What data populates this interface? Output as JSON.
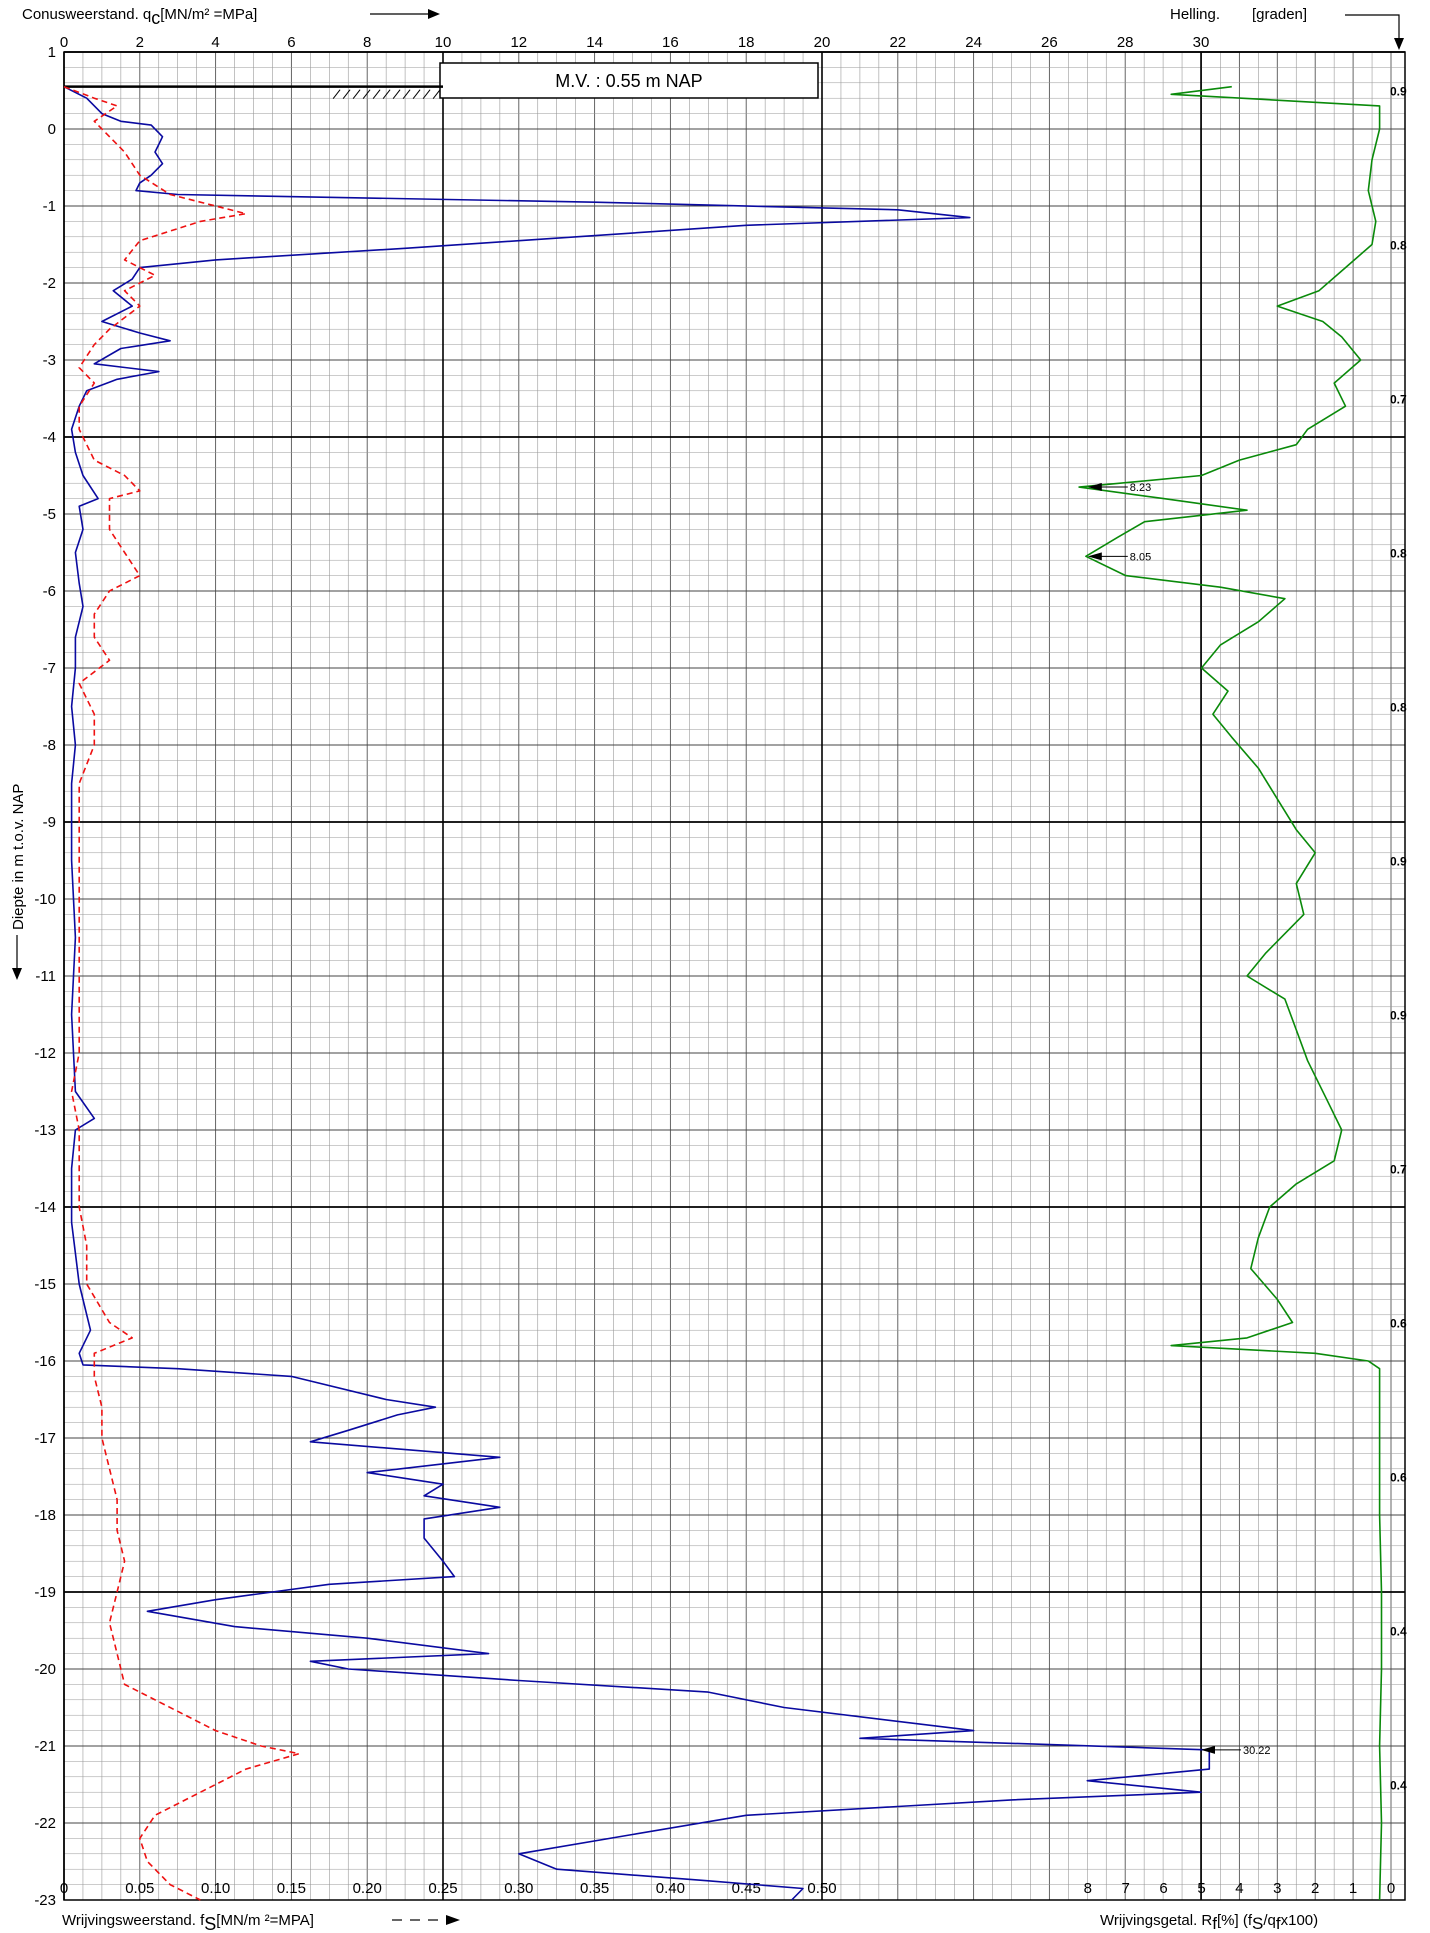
{
  "header": {
    "qc_label": "Conusweerstand. q",
    "qc_sub": "c",
    "qc_unit": "[MN/m² =MPa]",
    "helling_label": "Helling.",
    "helling_unit": "[graden]",
    "mv_label": "M.V. :  0.55      m    NAP"
  },
  "footer": {
    "fs_label": "Wrijvingsweerstand. f",
    "fs_sub": "S",
    "fs_unit": "[MN/m ²=MPA]",
    "rf_label": "Wrijvingsgetal. R",
    "rf_sub": "f",
    "rf_unit": "[%]  (f",
    "rf_unit2": "/q",
    "rf_unit3": "x100)"
  },
  "y_axis_label": "Diepte in m t.o.v. NAP",
  "chart_data": {
    "type": "line",
    "ground_level_nap": 0.55,
    "axes": {
      "depth": {
        "label": "Diepte in m t.o.v. NAP",
        "range": [
          1,
          -23
        ],
        "ticks": [
          1,
          0,
          -1,
          -2,
          -3,
          -4,
          -5,
          -6,
          -7,
          -8,
          -9,
          -10,
          -11,
          -12,
          -13,
          -14,
          -15,
          -16,
          -17,
          -18,
          -19,
          -20,
          -21,
          -22,
          -23
        ]
      },
      "qc": {
        "label": "Conusweerstand. qc [MN/m² =MPa]",
        "range": [
          0,
          30
        ],
        "ticks": [
          0,
          2,
          4,
          6,
          8,
          10,
          12,
          14,
          16,
          18,
          20,
          22,
          24,
          26,
          28,
          30
        ]
      },
      "fs": {
        "label": "Wrijvingsweerstand. fs [MN/m ²=MPA]",
        "range": [
          0,
          0.5
        ],
        "ticks": [
          "0",
          "0.05",
          "0.10",
          "0.15",
          "0.20",
          "0.25",
          "0.30",
          "0.35",
          "0.40",
          "0.45",
          "0.50"
        ]
      },
      "rf": {
        "label": "Wrijvingsgetal. Rf [%] (fs/qc x100)",
        "range": [
          10,
          0
        ],
        "ticks": [
          "8",
          "7",
          "6",
          "5",
          "4",
          "3",
          "2",
          "1",
          "0"
        ]
      },
      "helling": {
        "label": "Helling. [graden]",
        "labels": [
          {
            "depth": 0.5,
            "text": "0.9"
          },
          {
            "depth": -1.5,
            "text": "0.8"
          },
          {
            "depth": -3.5,
            "text": "0.7"
          },
          {
            "depth": -5.5,
            "text": "0.8"
          },
          {
            "depth": -7.5,
            "text": "0.8"
          },
          {
            "depth": -9.5,
            "text": "0.9"
          },
          {
            "depth": -11.5,
            "text": "0.9"
          },
          {
            "depth": -13.5,
            "text": "0.7"
          },
          {
            "depth": -15.5,
            "text": "0.6"
          },
          {
            "depth": -17.5,
            "text": "0.6"
          },
          {
            "depth": -19.5,
            "text": "0.4"
          },
          {
            "depth": -21.5,
            "text": "0.4"
          }
        ]
      }
    },
    "annotations": [
      {
        "depth": -4.65,
        "rf": 8.23,
        "text": "8.23"
      },
      {
        "depth": -5.55,
        "rf": 8.05,
        "text": "8.05"
      },
      {
        "depth": -21.05,
        "qc": 30.22,
        "text": "30.22"
      }
    ],
    "series": [
      {
        "name": "qc",
        "color": "#0a0aa0",
        "style": "solid",
        "points": [
          [
            0.55,
            0
          ],
          [
            0.4,
            0.6
          ],
          [
            0.2,
            1.0
          ],
          [
            0.1,
            1.5
          ],
          [
            0.05,
            2.3
          ],
          [
            -0.1,
            2.6
          ],
          [
            -0.2,
            2.5
          ],
          [
            -0.3,
            2.4
          ],
          [
            -0.45,
            2.6
          ],
          [
            -0.6,
            2.3
          ],
          [
            -0.7,
            2.0
          ],
          [
            -0.8,
            1.9
          ],
          [
            -0.85,
            3.0
          ],
          [
            -0.95,
            14.0
          ],
          [
            -1.05,
            22.0
          ],
          [
            -1.15,
            23.9
          ],
          [
            -1.25,
            18.0
          ],
          [
            -1.45,
            12.0
          ],
          [
            -1.55,
            9.0
          ],
          [
            -1.7,
            4.0
          ],
          [
            -1.8,
            2.0
          ],
          [
            -1.95,
            1.8
          ],
          [
            -2.1,
            1.3
          ],
          [
            -2.3,
            1.8
          ],
          [
            -2.5,
            1.0
          ],
          [
            -2.65,
            2.0
          ],
          [
            -2.75,
            2.8
          ],
          [
            -2.85,
            1.5
          ],
          [
            -3.05,
            0.8
          ],
          [
            -3.15,
            2.5
          ],
          [
            -3.25,
            1.4
          ],
          [
            -3.4,
            0.6
          ],
          [
            -3.6,
            0.4
          ],
          [
            -3.9,
            0.2
          ],
          [
            -4.2,
            0.3
          ],
          [
            -4.5,
            0.5
          ],
          [
            -4.8,
            0.9
          ],
          [
            -4.9,
            0.4
          ],
          [
            -5.2,
            0.5
          ],
          [
            -5.5,
            0.3
          ],
          [
            -5.9,
            0.4
          ],
          [
            -6.2,
            0.5
          ],
          [
            -6.6,
            0.3
          ],
          [
            -7.0,
            0.3
          ],
          [
            -7.5,
            0.2
          ],
          [
            -8.0,
            0.3
          ],
          [
            -8.5,
            0.2
          ],
          [
            -9.5,
            0.2
          ],
          [
            -10.5,
            0.3
          ],
          [
            -11.5,
            0.2
          ],
          [
            -12.5,
            0.3
          ],
          [
            -12.85,
            0.8
          ],
          [
            -13.0,
            0.3
          ],
          [
            -13.5,
            0.2
          ],
          [
            -14.2,
            0.2
          ],
          [
            -15.0,
            0.4
          ],
          [
            -15.6,
            0.7
          ],
          [
            -15.9,
            0.4
          ],
          [
            -16.05,
            0.5
          ],
          [
            -16.1,
            3.0
          ],
          [
            -16.2,
            6.0
          ],
          [
            -16.5,
            8.5
          ],
          [
            -16.6,
            9.8
          ],
          [
            -16.7,
            8.8
          ],
          [
            -16.9,
            7.5
          ],
          [
            -17.05,
            6.5
          ],
          [
            -17.25,
            11.5
          ],
          [
            -17.45,
            8.0
          ],
          [
            -17.6,
            10.0
          ],
          [
            -17.75,
            9.5
          ],
          [
            -17.9,
            11.5
          ],
          [
            -18.05,
            9.5
          ],
          [
            -18.3,
            9.5
          ],
          [
            -18.6,
            10.0
          ],
          [
            -18.8,
            10.3
          ],
          [
            -18.9,
            7.0
          ],
          [
            -19.1,
            4.0
          ],
          [
            -19.25,
            2.2
          ],
          [
            -19.45,
            4.5
          ],
          [
            -19.6,
            8.0
          ],
          [
            -19.8,
            11.2
          ],
          [
            -19.9,
            6.5
          ],
          [
            -20.0,
            7.5
          ],
          [
            -20.15,
            12.0
          ],
          [
            -20.3,
            17.0
          ],
          [
            -20.5,
            19.0
          ],
          [
            -20.8,
            24.0
          ],
          [
            -20.9,
            21.0
          ],
          [
            -21.05,
            30.22
          ],
          [
            -21.3,
            30.22
          ],
          [
            -21.45,
            27.0
          ],
          [
            -21.6,
            30.0
          ],
          [
            -21.7,
            25.0
          ],
          [
            -21.9,
            18.0
          ],
          [
            -22.15,
            15.0
          ],
          [
            -22.4,
            12.0
          ],
          [
            -22.6,
            13.0
          ],
          [
            -22.75,
            17.0
          ],
          [
            -22.85,
            19.5
          ],
          [
            -23.0,
            19.2
          ]
        ]
      },
      {
        "name": "fs",
        "color": "#ee1111",
        "style": "dashed",
        "points": [
          [
            0.55,
            0.0
          ],
          [
            0.4,
            0.02
          ],
          [
            0.3,
            0.035
          ],
          [
            0.1,
            0.02
          ],
          [
            -0.1,
            0.03
          ],
          [
            -0.3,
            0.04
          ],
          [
            -0.6,
            0.05
          ],
          [
            -0.85,
            0.07
          ],
          [
            -1.0,
            0.1
          ],
          [
            -1.1,
            0.12
          ],
          [
            -1.2,
            0.09
          ],
          [
            -1.45,
            0.05
          ],
          [
            -1.7,
            0.04
          ],
          [
            -1.9,
            0.06
          ],
          [
            -2.1,
            0.04
          ],
          [
            -2.3,
            0.05
          ],
          [
            -2.6,
            0.03
          ],
          [
            -2.8,
            0.02
          ],
          [
            -3.1,
            0.01
          ],
          [
            -3.3,
            0.02
          ],
          [
            -3.6,
            0.01
          ],
          [
            -3.9,
            0.01
          ],
          [
            -4.3,
            0.02
          ],
          [
            -4.5,
            0.04
          ],
          [
            -4.7,
            0.05
          ],
          [
            -4.8,
            0.03
          ],
          [
            -5.2,
            0.03
          ],
          [
            -5.5,
            0.04
          ],
          [
            -5.8,
            0.05
          ],
          [
            -6.0,
            0.03
          ],
          [
            -6.3,
            0.02
          ],
          [
            -6.6,
            0.02
          ],
          [
            -6.9,
            0.03
          ],
          [
            -7.2,
            0.01
          ],
          [
            -7.6,
            0.02
          ],
          [
            -8.0,
            0.02
          ],
          [
            -8.5,
            0.01
          ],
          [
            -9.0,
            0.01
          ],
          [
            -10.0,
            0.01
          ],
          [
            -11.0,
            0.01
          ],
          [
            -12.0,
            0.01
          ],
          [
            -12.5,
            0.005
          ],
          [
            -13.0,
            0.01
          ],
          [
            -13.5,
            0.01
          ],
          [
            -14.0,
            0.01
          ],
          [
            -14.5,
            0.015
          ],
          [
            -15.0,
            0.015
          ],
          [
            -15.5,
            0.03
          ],
          [
            -15.7,
            0.045
          ],
          [
            -15.9,
            0.02
          ],
          [
            -16.2,
            0.02
          ],
          [
            -16.6,
            0.025
          ],
          [
            -17.0,
            0.025
          ],
          [
            -17.4,
            0.03
          ],
          [
            -17.8,
            0.035
          ],
          [
            -18.2,
            0.035
          ],
          [
            -18.6,
            0.04
          ],
          [
            -19.0,
            0.035
          ],
          [
            -19.4,
            0.03
          ],
          [
            -19.8,
            0.035
          ],
          [
            -20.2,
            0.04
          ],
          [
            -20.4,
            0.06
          ],
          [
            -20.6,
            0.08
          ],
          [
            -20.8,
            0.1
          ],
          [
            -21.0,
            0.13
          ],
          [
            -21.1,
            0.155
          ],
          [
            -21.3,
            0.12
          ],
          [
            -21.5,
            0.1
          ],
          [
            -21.7,
            0.08
          ],
          [
            -21.9,
            0.06
          ],
          [
            -22.2,
            0.05
          ],
          [
            -22.5,
            0.055
          ],
          [
            -22.8,
            0.07
          ],
          [
            -23.0,
            0.09
          ]
        ]
      },
      {
        "name": "Rf",
        "color": "#0a8a0a",
        "style": "solid",
        "points": [
          [
            0.55,
            4.2
          ],
          [
            0.45,
            5.8
          ],
          [
            0.3,
            0.3
          ],
          [
            0.0,
            0.3
          ],
          [
            -0.4,
            0.5
          ],
          [
            -0.8,
            0.6
          ],
          [
            -1.2,
            0.4
          ],
          [
            -1.5,
            0.5
          ],
          [
            -1.8,
            1.2
          ],
          [
            -2.1,
            1.9
          ],
          [
            -2.3,
            3.0
          ],
          [
            -2.5,
            1.8
          ],
          [
            -2.7,
            1.3
          ],
          [
            -3.0,
            0.8
          ],
          [
            -3.3,
            1.5
          ],
          [
            -3.6,
            1.2
          ],
          [
            -3.9,
            2.2
          ],
          [
            -4.1,
            2.5
          ],
          [
            -4.3,
            4.0
          ],
          [
            -4.5,
            5.0
          ],
          [
            -4.65,
            8.23
          ],
          [
            -4.8,
            6.0
          ],
          [
            -4.95,
            3.8
          ],
          [
            -5.1,
            6.5
          ],
          [
            -5.3,
            7.2
          ],
          [
            -5.55,
            8.05
          ],
          [
            -5.8,
            7.0
          ],
          [
            -5.95,
            4.5
          ],
          [
            -6.1,
            2.8
          ],
          [
            -6.4,
            3.5
          ],
          [
            -6.7,
            4.5
          ],
          [
            -7.0,
            5.0
          ],
          [
            -7.3,
            4.3
          ],
          [
            -7.6,
            4.7
          ],
          [
            -7.9,
            4.2
          ],
          [
            -8.3,
            3.5
          ],
          [
            -8.7,
            3.0
          ],
          [
            -9.1,
            2.5
          ],
          [
            -9.4,
            2.0
          ],
          [
            -9.8,
            2.5
          ],
          [
            -10.2,
            2.3
          ],
          [
            -10.7,
            3.3
          ],
          [
            -11.0,
            3.8
          ],
          [
            -11.3,
            2.8
          ],
          [
            -11.7,
            2.5
          ],
          [
            -12.1,
            2.2
          ],
          [
            -12.6,
            1.7
          ],
          [
            -13.0,
            1.3
          ],
          [
            -13.4,
            1.5
          ],
          [
            -13.7,
            2.5
          ],
          [
            -14.0,
            3.2
          ],
          [
            -14.4,
            3.5
          ],
          [
            -14.8,
            3.7
          ],
          [
            -15.2,
            3.0
          ],
          [
            -15.5,
            2.6
          ],
          [
            -15.7,
            3.8
          ],
          [
            -15.8,
            5.8
          ],
          [
            -15.9,
            2.0
          ],
          [
            -16.0,
            0.6
          ],
          [
            -16.1,
            0.3
          ],
          [
            -17.0,
            0.3
          ],
          [
            -18.0,
            0.3
          ],
          [
            -19.0,
            0.25
          ],
          [
            -20.0,
            0.25
          ],
          [
            -21.0,
            0.3
          ],
          [
            -22.0,
            0.25
          ],
          [
            -23.0,
            0.3
          ]
        ]
      }
    ]
  }
}
